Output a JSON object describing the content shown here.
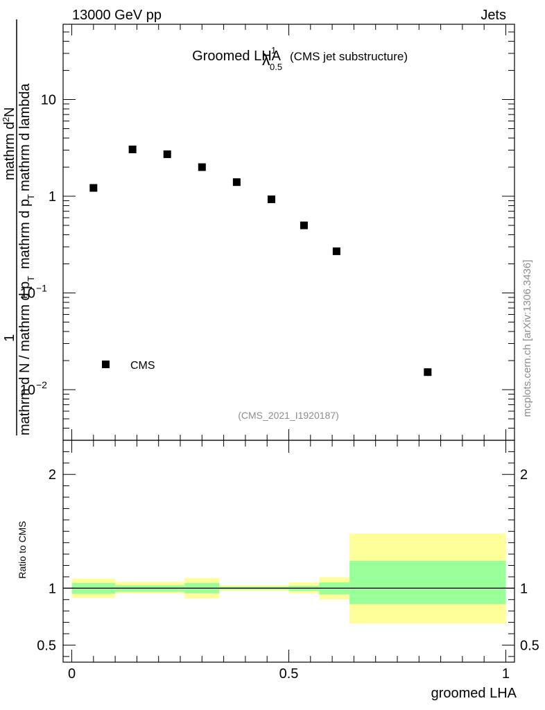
{
  "header": {
    "energy_label": "13000 GeV pp",
    "process_label": "Jets"
  },
  "side_label": "mcplots.cern.ch [arXiv:1306.3436]",
  "chart_data": [
    {
      "type": "scatter",
      "title_main": "Groomed LHA",
      "title_symbol": "λ",
      "title_sup": "1",
      "title_sub": "0.5",
      "title_note": "(CMS jet substructure)",
      "analysis_id": "(CMS_2021_I1920187)",
      "ylabel": {
        "prefix": "1",
        "denominator": "mathrm d N / mathrm d p",
        "denominator_sub": "T",
        "numerator": "mathrm d",
        "numerator_sup": "2",
        "numerator_tail": "N",
        "lower": "mathrm d p",
        "lower_sub": "T",
        "lower_tail": "mathrm d lambda"
      },
      "yscale": "log",
      "ylim": [
        0.003,
        60
      ],
      "xlim": [
        -0.02,
        1.02
      ],
      "ytick_labels": [
        {
          "value": 10,
          "label": "10"
        },
        {
          "value": 1,
          "label": "1"
        },
        {
          "value": 0.1,
          "base": "10",
          "exp": "−1"
        },
        {
          "value": 0.01,
          "base": "10",
          "exp": "−2"
        }
      ],
      "legend": {
        "label": "CMS",
        "placement": "lower-left"
      },
      "series": [
        {
          "name": "CMS",
          "x": [
            0.05,
            0.14,
            0.22,
            0.3,
            0.38,
            0.46,
            0.535,
            0.61,
            0.82
          ],
          "y": [
            1.22,
            3.05,
            2.72,
            2.0,
            1.4,
            0.93,
            0.5,
            0.27,
            0.0152
          ]
        }
      ]
    },
    {
      "type": "area",
      "ylabel": "Ratio to CMS",
      "xlabel": "groomed LHA",
      "ylim": [
        0.35,
        2.3
      ],
      "xlim": [
        -0.02,
        1.02
      ],
      "xtick_labels": [
        {
          "value": 0,
          "label": "0"
        },
        {
          "value": 0.5,
          "label": "0.5"
        },
        {
          "value": 1,
          "label": "1"
        }
      ],
      "ytick_labels": [
        {
          "value": 0.5,
          "label": "0.5"
        },
        {
          "value": 1,
          "label": "1"
        },
        {
          "value": 2,
          "label": "2"
        }
      ],
      "reference_line": 1,
      "bins": [
        {
          "x0": 0.0,
          "x1": 0.1,
          "inner": [
            0.95,
            1.045
          ],
          "outer": [
            0.915,
            1.085
          ]
        },
        {
          "x0": 0.1,
          "x1": 0.26,
          "inner": [
            0.97,
            1.025
          ],
          "outer": [
            0.955,
            1.055
          ]
        },
        {
          "x0": 0.26,
          "x1": 0.34,
          "inner": [
            0.955,
            1.045
          ],
          "outer": [
            0.91,
            1.09
          ]
        },
        {
          "x0": 0.34,
          "x1": 0.5,
          "inner": [
            0.988,
            1.012
          ],
          "outer": [
            0.978,
            1.025
          ]
        },
        {
          "x0": 0.5,
          "x1": 0.57,
          "inner": [
            0.975,
            1.02
          ],
          "outer": [
            0.955,
            1.05
          ]
        },
        {
          "x0": 0.57,
          "x1": 0.64,
          "inner": [
            0.945,
            1.05
          ],
          "outer": [
            0.9,
            1.095
          ]
        },
        {
          "x0": 0.64,
          "x1": 1.0,
          "inner": [
            0.86,
            1.24
          ],
          "outer": [
            0.69,
            1.48
          ]
        }
      ],
      "colors": {
        "inner": "#99ff99",
        "outer": "#ffff99"
      }
    }
  ]
}
